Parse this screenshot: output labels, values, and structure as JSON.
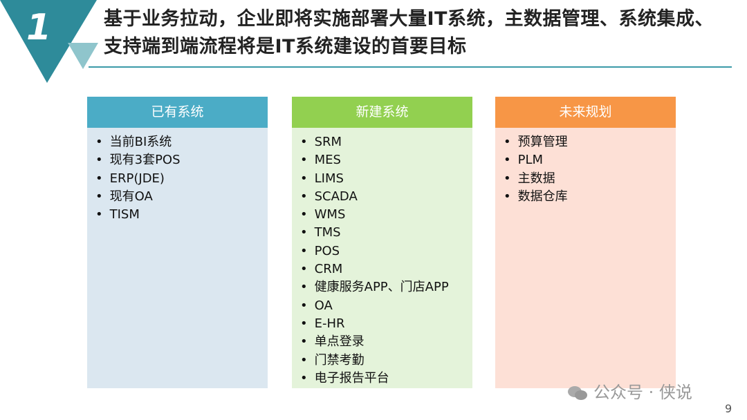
{
  "section_number": "1",
  "title": "基于业务拉动，企业即将实施部署大量IT系统，主数据管理、系统集成、支持端到端流程将是IT系统建设的首要目标",
  "columns": [
    {
      "header": "已有系统",
      "header_color": "#4bacc6",
      "body_color": "#dbe7f0",
      "items": [
        "当前BI系统",
        "现有3套POS",
        "ERP(JDE)",
        "现有OA",
        "TISM"
      ]
    },
    {
      "header": "新建系统",
      "header_color": "#92d050",
      "body_color": "#e4f3da",
      "items": [
        "SRM",
        "MES",
        "LIMS",
        "SCADA",
        "WMS",
        "TMS",
        "POS",
        "CRM",
        "健康服务APP、门店APP",
        "OA",
        "E-HR",
        "单点登录",
        "门禁考勤",
        "电子报告平台"
      ]
    },
    {
      "header": "未来规划",
      "header_color": "#f79646",
      "body_color": "#fde0d6",
      "items": [
        "预算管理",
        "PLM",
        "主数据",
        "数据仓库"
      ]
    }
  ],
  "watermark": "公众号 · 侠说",
  "page_number": "9"
}
